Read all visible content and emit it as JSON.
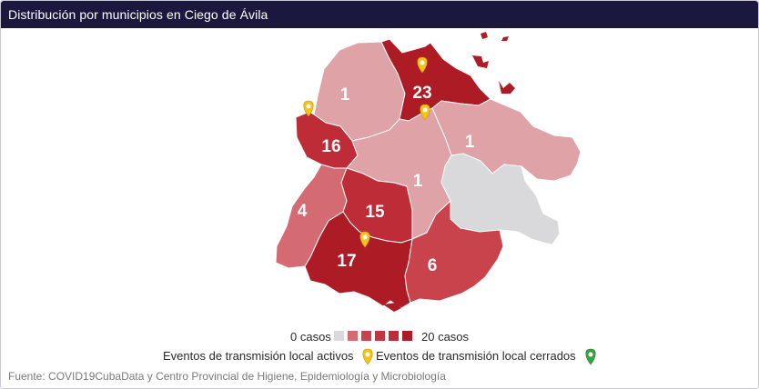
{
  "header": {
    "title": "Distribución por municipios en Ciego de Ávila"
  },
  "map": {
    "labels": [
      "1",
      "23",
      "16",
      "1",
      "1",
      "4",
      "15",
      "17",
      "6"
    ]
  },
  "legend": {
    "scale_min": "0 casos",
    "scale_max": "20 casos",
    "active_events": "Eventos de transmisión local activos",
    "closed_events": "Eventos de transmisión local cerrados"
  },
  "source": "Fuente: COVID19CubaData y Centro Provincial de Higiene, Epidemiología y Microbiología",
  "colors": {
    "header": "#1b1840",
    "zero": "#d9d9db",
    "level_1": "#dfa2a6",
    "level_2": "#d46a72",
    "level_3": "#c9434d",
    "level_4": "#bd2c37",
    "level_5": "#ad1c25",
    "pin_active": "#f2c318",
    "pin_closed": "#3aa341"
  },
  "icons": {
    "active_pin": "map-pin-yellow-icon",
    "closed_pin": "map-pin-green-icon"
  }
}
